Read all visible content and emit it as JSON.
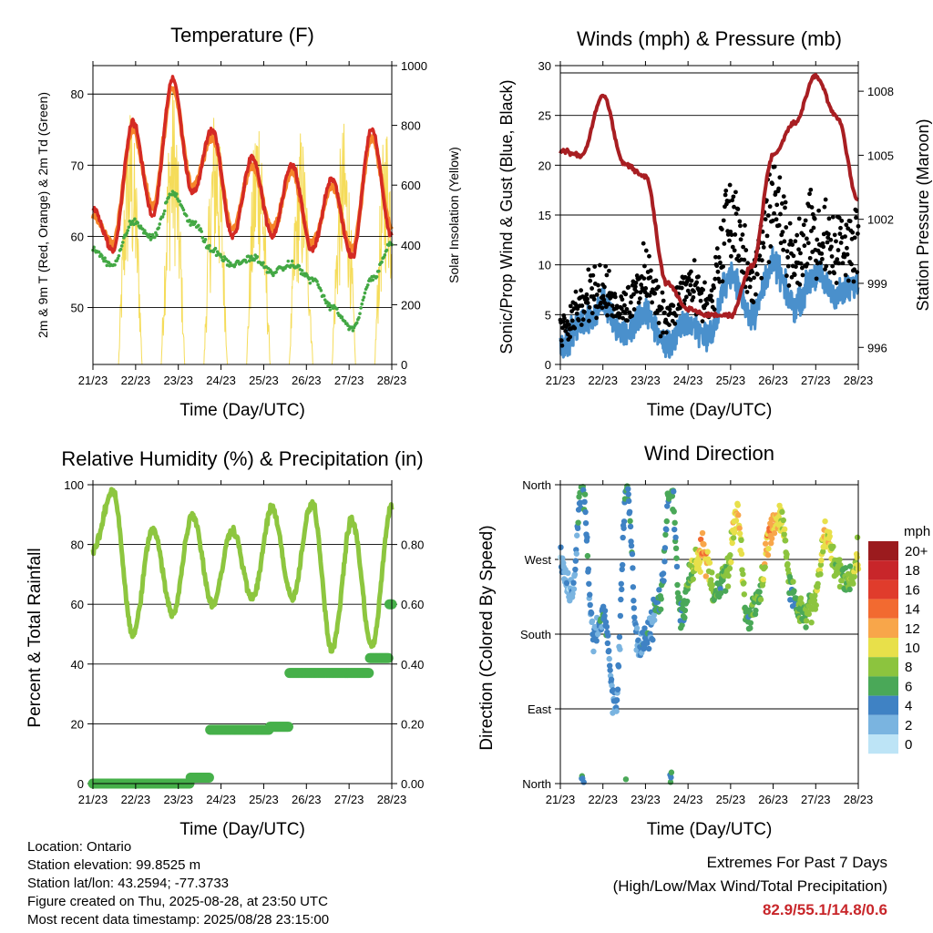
{
  "x_ticks": [
    "21/23",
    "22/23",
    "23/23",
    "24/23",
    "25/23",
    "26/23",
    "27/23",
    "28/23"
  ],
  "x_label": "Time (Day/UTC)",
  "colors": {
    "temp_2m": "#d42a24",
    "temp_9m": "#f5862a",
    "dewpoint": "#43a844",
    "solar": "#f5dc5a",
    "sonic_wind": "#4a90cc",
    "gust": "#000000",
    "pressure": "#a81e22",
    "rh": "#8dc63f",
    "precip": "#46b04a",
    "extremes": "#c8262a"
  },
  "panels": {
    "temperature": {
      "title": "Temperature (F)",
      "ylabel_left": "2m & 9m T (Red, Orange) & 2m Td (Green)",
      "ylabel_right": "Solar Insolation (Yellow)",
      "y_ticks_left": [
        "50",
        "60",
        "70",
        "80"
      ],
      "y_ticks_right": [
        "0",
        "200",
        "400",
        "600",
        "800",
        "1000"
      ]
    },
    "winds": {
      "title": "Winds (mph) & Pressure (mb)",
      "ylabel_left": "Sonic/Prop Wind & Gust (Blue, Black)",
      "ylabel_right": "Station Pressure (Maroon)",
      "y_ticks_left": [
        "0",
        "5",
        "10",
        "15",
        "20",
        "25",
        "30"
      ],
      "y_ticks_right": [
        "996",
        "999",
        "1002",
        "1005",
        "1008"
      ]
    },
    "humidity": {
      "title": "Relative Humidity (%) & Precipitation (in)",
      "ylabel_left": "Percent & Total Rainfall",
      "y_ticks_left": [
        "0",
        "20",
        "40",
        "60",
        "80",
        "100"
      ],
      "y_ticks_right": [
        "0.00",
        "0.20",
        "0.40",
        "0.60",
        "0.80"
      ]
    },
    "direction": {
      "title": "Wind Direction",
      "ylabel_left": "Direction (Colored By Speed)",
      "y_ticks_left": [
        "North",
        "East",
        "South",
        "West",
        "North"
      ],
      "legend_title": "mph",
      "legend_labels": [
        "20+",
        "18",
        "16",
        "14",
        "12",
        "10",
        "8",
        "6",
        "4",
        "2",
        "0"
      ],
      "legend_colors": [
        "#9b1b1e",
        "#c8262a",
        "#e03c2c",
        "#f26a30",
        "#f8a64a",
        "#e8e04a",
        "#8cc43e",
        "#4aa858",
        "#3f82c4",
        "#7ab4e0",
        "#bde4f6"
      ]
    }
  },
  "chart_data": [
    {
      "type": "line",
      "title": "Temperature (F)",
      "xlabel": "Time (Day/UTC)",
      "ylabel": "2m & 9m T (Red, Orange) & 2m Td (Green)",
      "y2label": "Solar Insolation (Yellow)",
      "ylim": [
        42,
        84
      ],
      "y2lim": [
        0,
        1000
      ],
      "x": [
        "21/23",
        "22/00",
        "22/12",
        "22/23",
        "23/12",
        "23/23",
        "24/12",
        "24/23",
        "25/12",
        "25/23",
        "26/12",
        "26/23",
        "27/12",
        "27/23",
        "28/12",
        "28/23"
      ],
      "series": [
        {
          "name": "2m T",
          "values": [
            64,
            58,
            76,
            63,
            82,
            66,
            75,
            60,
            71,
            60,
            70,
            58,
            68,
            57,
            75,
            60
          ]
        },
        {
          "name": "9m T",
          "values": [
            63,
            59,
            75,
            64,
            81,
            67,
            74,
            61,
            70,
            61,
            69,
            59,
            67,
            58,
            74,
            61
          ]
        },
        {
          "name": "2m Td",
          "values": [
            58,
            56,
            62,
            60,
            66,
            62,
            58,
            56,
            57,
            55,
            56,
            54,
            50,
            47,
            54,
            59
          ]
        }
      ],
      "solar_daily_peak": [
        0,
        880,
        950,
        900,
        920,
        800,
        820,
        840
      ]
    },
    {
      "type": "scatter",
      "title": "Winds (mph) & Pressure (mb)",
      "xlabel": "Time (Day/UTC)",
      "ylabel": "Sonic/Prop Wind & Gust (Blue, Black)",
      "y2label": "Station Pressure (Maroon)",
      "ylim": [
        0,
        30
      ],
      "y2lim": [
        995.2,
        1009.2
      ],
      "x": [
        "21/23",
        "22/06",
        "22/23",
        "23/06",
        "23/23",
        "24/06",
        "24/23",
        "25/06",
        "25/23",
        "26/06",
        "26/23",
        "27/06",
        "27/23",
        "28/06",
        "28/23"
      ],
      "series": [
        {
          "name": "Sonic/Prop Wind",
          "values": [
            2,
            4,
            6,
            3,
            5,
            2,
            4,
            3,
            9,
            5,
            10,
            6,
            9,
            7,
            8
          ]
        },
        {
          "name": "Gust",
          "values": [
            5,
            8,
            10,
            7,
            12,
            6,
            10,
            8,
            19,
            11,
            20,
            14,
            18,
            15,
            16
          ]
        },
        {
          "name": "Station Pressure",
          "values": [
            1005.2,
            1005.0,
            1007.8,
            1004.6,
            1004.0,
            999.0,
            997.8,
            997.5,
            997.5,
            999.8,
            1005.0,
            1006.5,
            1008.7,
            1006.8,
            1002.9
          ]
        }
      ]
    },
    {
      "type": "line",
      "title": "Relative Humidity (%) & Precipitation (in)",
      "xlabel": "Time (Day/UTC)",
      "ylabel": "Percent & Total Rainfall",
      "ylim": [
        0,
        100
      ],
      "y2lim": [
        0,
        1.0
      ],
      "x": [
        "21/23",
        "22/00",
        "22/12",
        "22/23",
        "23/12",
        "23/23",
        "24/12",
        "24/23",
        "25/12",
        "25/23",
        "26/12",
        "26/23",
        "27/12",
        "27/23",
        "28/12",
        "28/23"
      ],
      "series": [
        {
          "name": "Relative Humidity",
          "values": [
            78,
            98,
            50,
            85,
            57,
            90,
            60,
            85,
            62,
            92,
            62,
            94,
            45,
            88,
            46,
            93
          ]
        },
        {
          "name": "Total Precipitation",
          "values": [
            0.0,
            0.0,
            0.0,
            0.0,
            0.0,
            0.02,
            0.18,
            0.18,
            0.18,
            0.19,
            0.37,
            0.37,
            0.37,
            0.37,
            0.42,
            0.6
          ]
        }
      ]
    },
    {
      "type": "scatter",
      "title": "Wind Direction",
      "xlabel": "Time (Day/UTC)",
      "ylabel": "Direction (Colored By Speed)",
      "ylim": [
        0,
        360
      ],
      "x": [
        "21/23",
        "22/06",
        "22/12",
        "22/18",
        "23/00",
        "23/06",
        "23/12",
        "23/18",
        "24/00",
        "24/06",
        "24/12",
        "24/18",
        "25/00",
        "25/06",
        "25/12",
        "25/18",
        "26/00",
        "26/06",
        "26/12",
        "26/18",
        "27/00",
        "27/06",
        "27/12",
        "27/18",
        "28/00",
        "28/06",
        "28/12",
        "28/18"
      ],
      "series": [
        {
          "name": "Direction",
          "values": [
            270,
            230,
            360,
            180,
            200,
            90,
            360,
            170,
            180,
            220,
            360,
            200,
            260,
            280,
            230,
            250,
            320,
            200,
            230,
            300,
            320,
            230,
            200,
            220,
            300,
            260,
            240,
            270
          ]
        },
        {
          "name": "Speed",
          "values": [
            2,
            2,
            5,
            3,
            4,
            3,
            5,
            3,
            4,
            5,
            5,
            5,
            8,
            12,
            6,
            7,
            11,
            6,
            7,
            12,
            10,
            6,
            7,
            8,
            10,
            8,
            7,
            10
          ]
        }
      ]
    }
  ],
  "info": {
    "location": "Location: Ontario",
    "elevation": "Station elevation: 99.8525 m",
    "latlon": "Station lat/lon: 43.2594; -77.3733",
    "created": "Figure created on Thu, 2025-08-28, at 23:50 UTC",
    "recent": "Most recent data timestamp: 2025/08/28 23:15:00"
  },
  "extremes": {
    "line1": "Extremes For Past 7 Days",
    "line2": "(High/Low/Max Wind/Total Precipitation)",
    "values": "82.9/55.1/14.8/0.6"
  }
}
